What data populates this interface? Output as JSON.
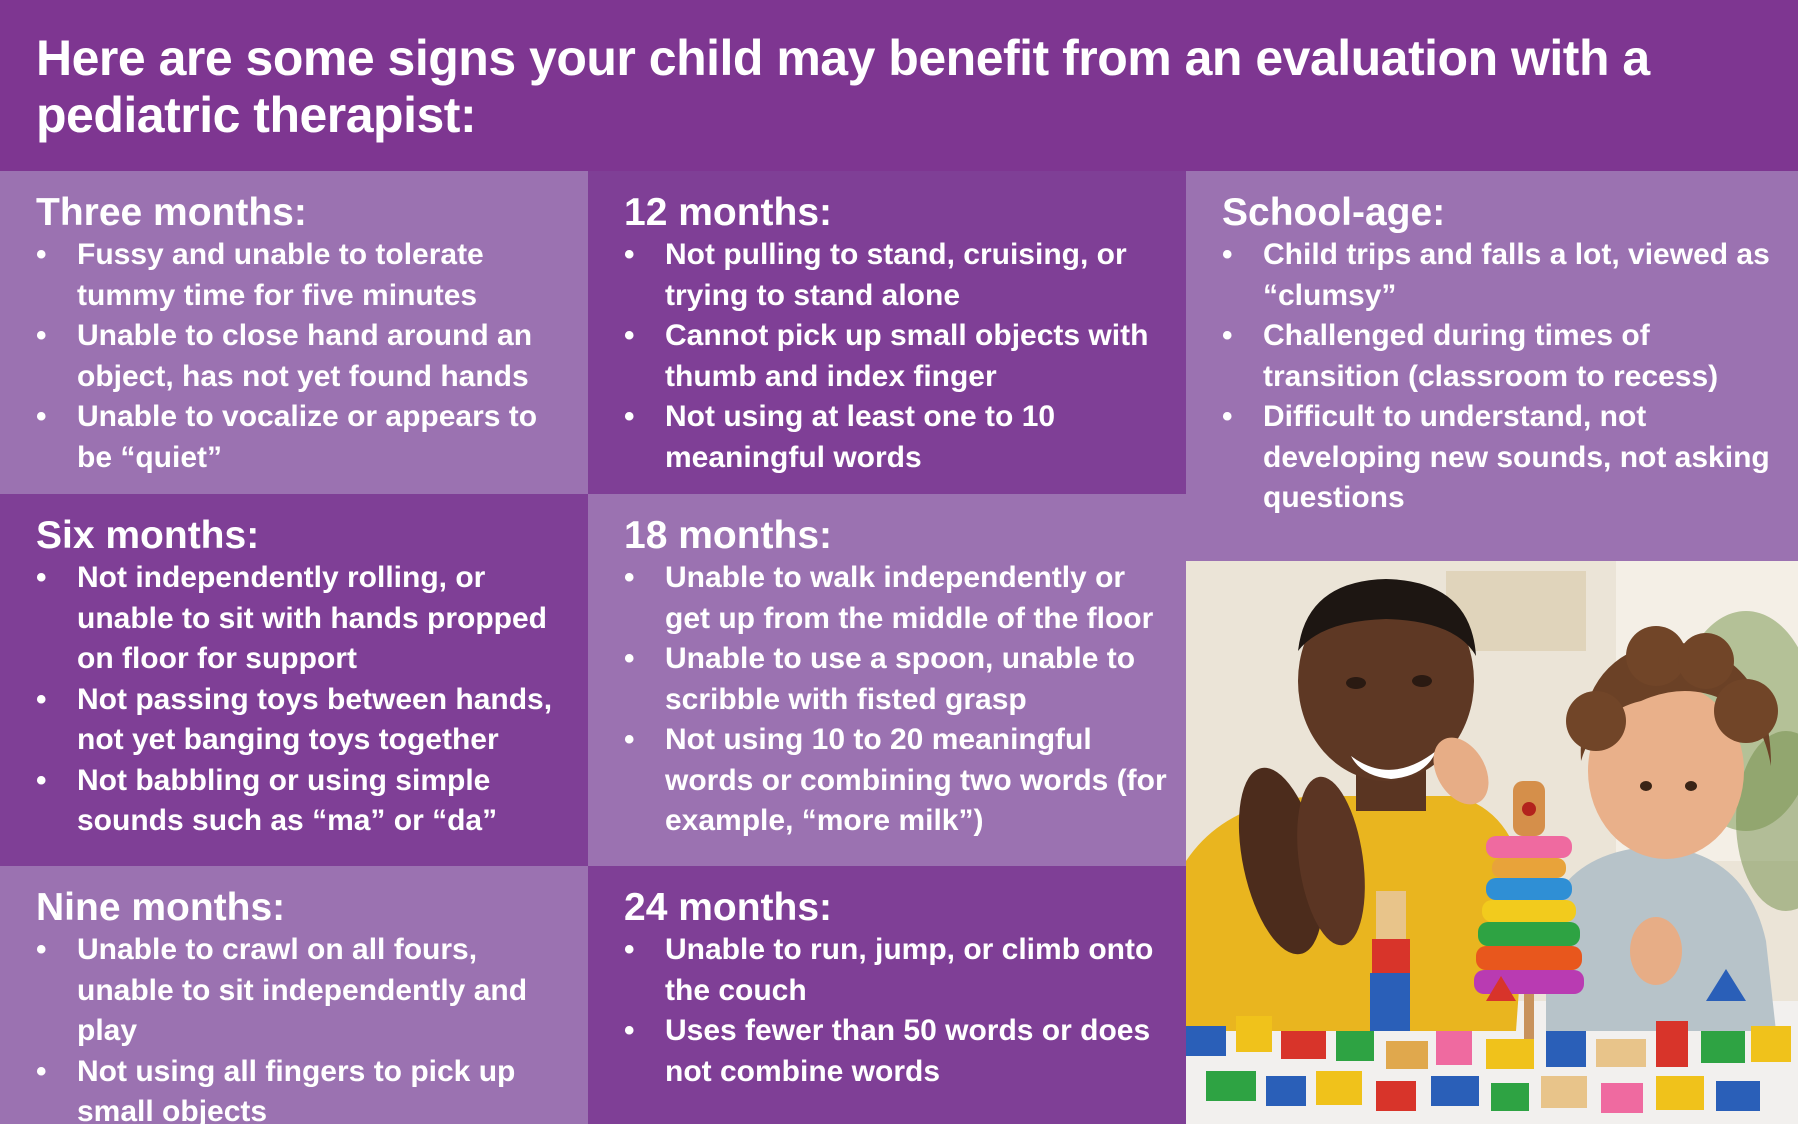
{
  "header": {
    "title": "Here are some signs your child may benefit from an evaluation with a pediatric therapist:"
  },
  "bullet_glyph": "•",
  "sections": {
    "three_months": {
      "title": "Three months:",
      "items": [
        "Fussy and unable to tolerate tummy time for five minutes",
        "Unable to close hand around an object, has not yet found hands",
        "Unable to vocalize or appears to be “quiet”"
      ]
    },
    "six_months": {
      "title": "Six months:",
      "items": [
        "Not independently rolling, or unable to sit with hands propped on floor for support",
        "Not passing toys between hands, not yet banging toys together",
        "Not babbling or using simple sounds such as “ma” or “da”"
      ]
    },
    "nine_months": {
      "title": "Nine months:",
      "items": [
        "Unable to crawl on all fours, unable to sit independently and play",
        "Not using all fingers to pick up small objects"
      ]
    },
    "twelve_months": {
      "title": "12 months:",
      "items": [
        "Not pulling to stand, cruising, or trying to stand alone",
        "Cannot pick up small objects with thumb and index finger",
        "Not using at least one to 10 meaningful words"
      ]
    },
    "eighteen_months": {
      "title": "18 months:",
      "items": [
        "Unable to walk independently or get up from the middle of the floor",
        "Unable to use a spoon, unable to scribble with fisted grasp",
        "Not using 10 to 20 meaningful words or combining two words (for example, “more milk”)"
      ]
    },
    "twentyfour_months": {
      "title": "24 months:",
      "items": [
        "Unable to run, jump, or climb onto the couch",
        "Uses fewer than 50 words or does not combine words"
      ]
    },
    "school_age": {
      "title": "School-age:",
      "items": [
        "Child trips and falls a lot, viewed as “clumsy”",
        "Challenged during times of transition (classroom to recess)",
        "Difficult to understand, not developing new sounds, not asking questions"
      ]
    }
  },
  "colors": {
    "header": "#7e3691",
    "panel_light": "#9b72b1",
    "panel_dark": "#7f3f96",
    "text": "#ffffff"
  }
}
